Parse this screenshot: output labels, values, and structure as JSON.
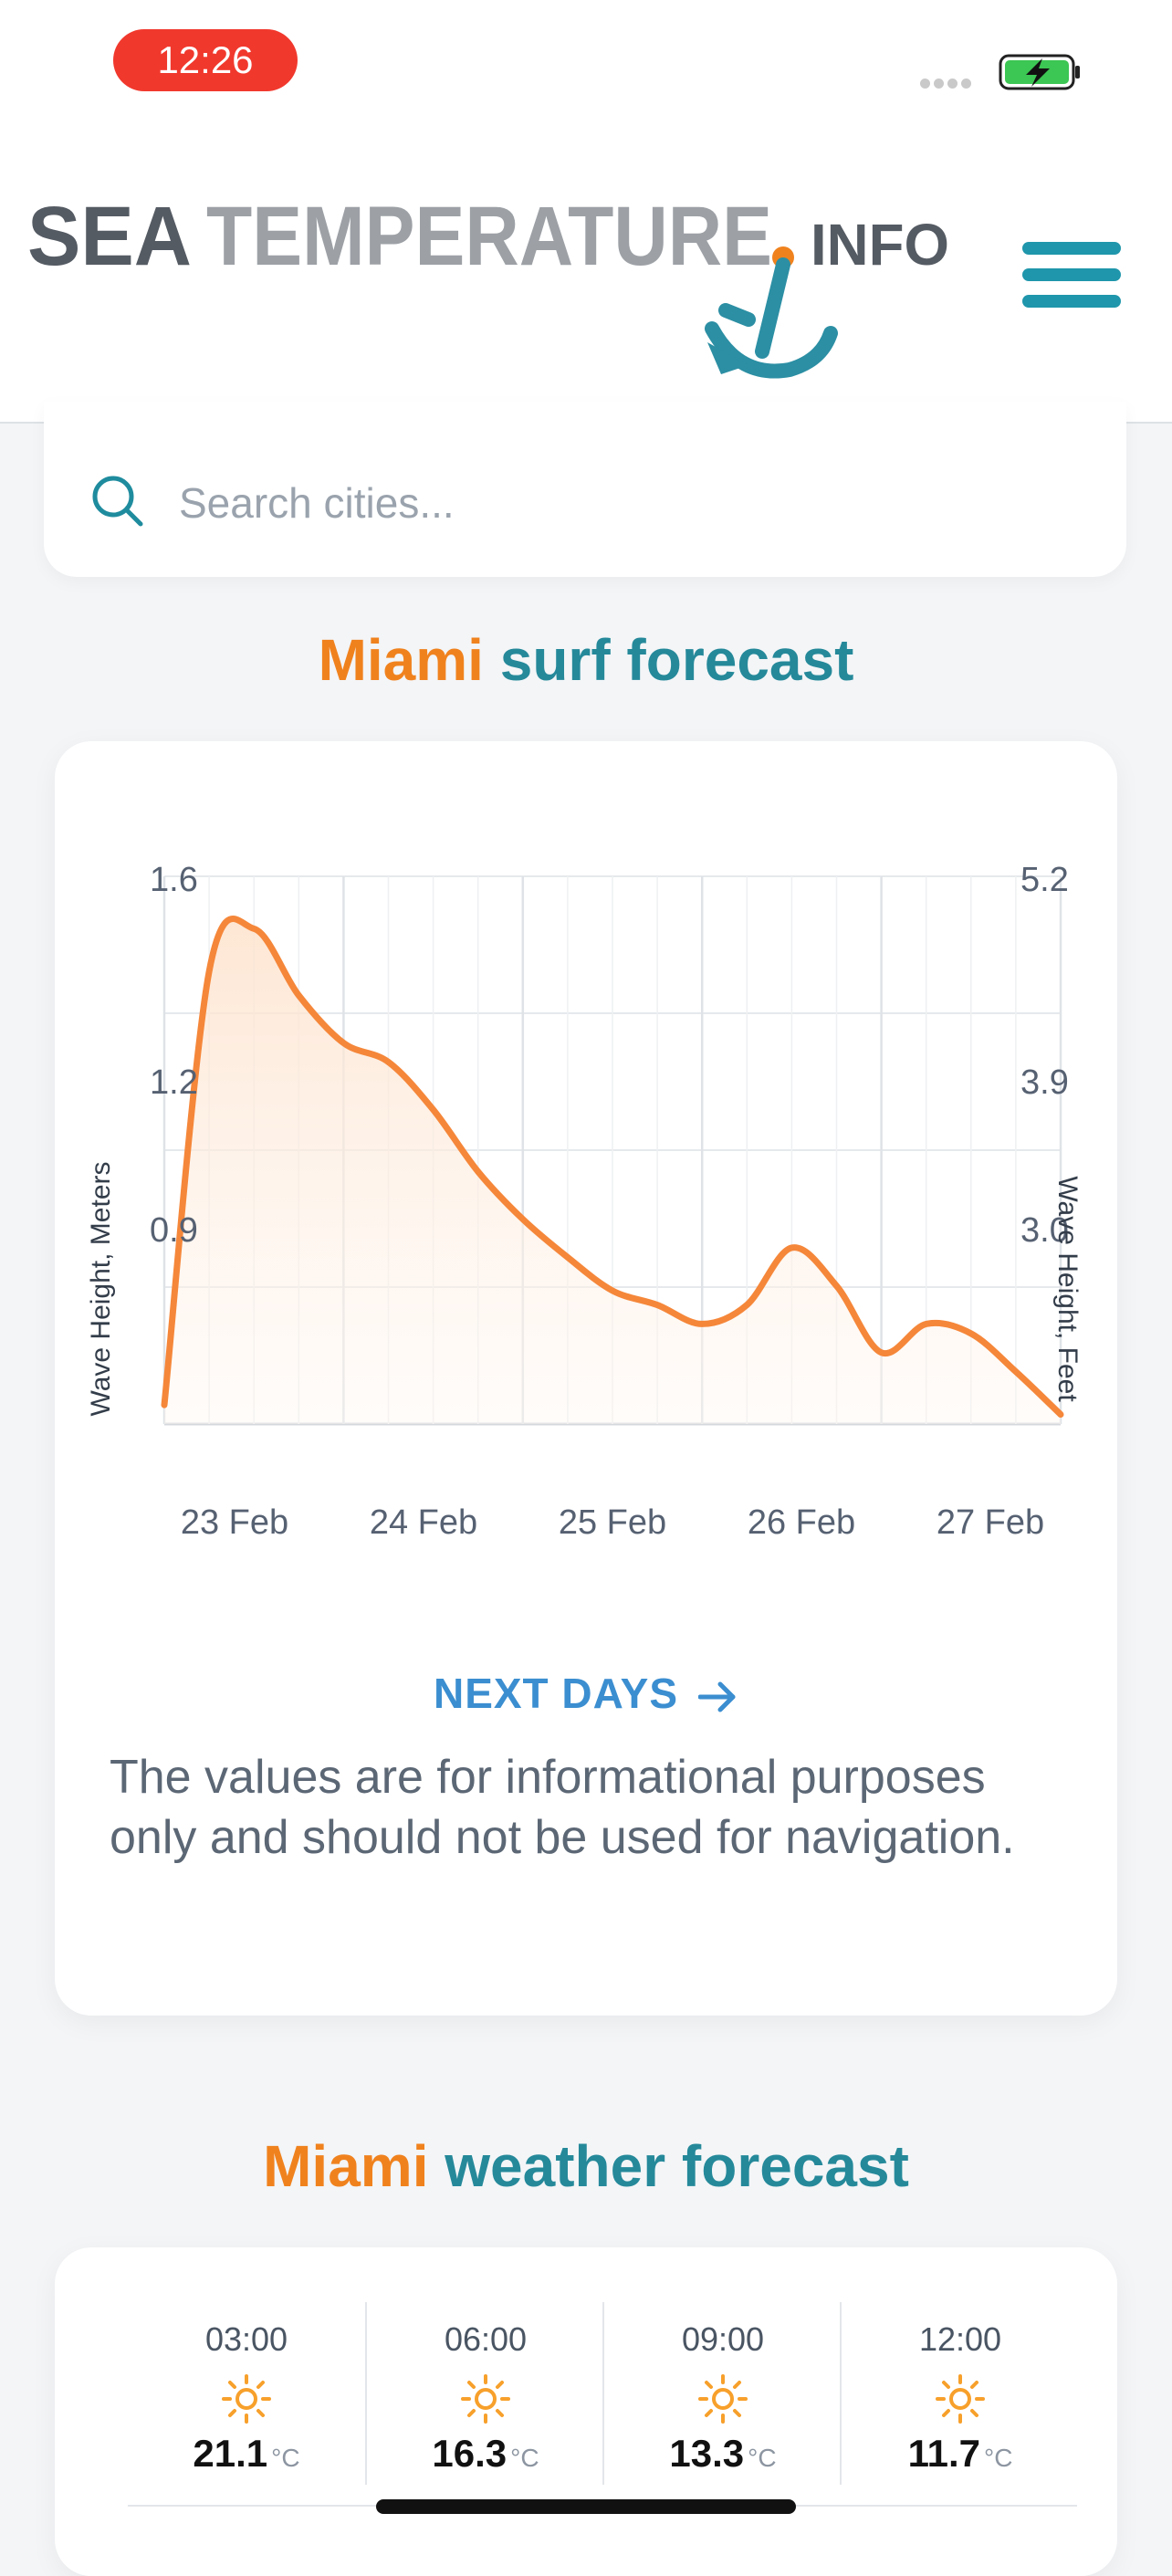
{
  "status_bar": {
    "time": "12:26"
  },
  "header": {
    "logo_text_1": "SEA",
    "logo_text_2": "TEMPERATURE",
    "logo_text_3": "INFO"
  },
  "search": {
    "placeholder": "Search cities..."
  },
  "surf_section": {
    "title_city": "Miami",
    "title_rest": " surf forecast",
    "next_days_label": "NEXT DAYS",
    "disclaimer": "The values are for informational purposes only and should not be used for navigation."
  },
  "chart_data": {
    "type": "area",
    "x": [
      0,
      0.25,
      0.5,
      0.75,
      1.0,
      1.25,
      1.5,
      1.75,
      2.0,
      2.25,
      2.5,
      2.75,
      3.0,
      3.25,
      3.5,
      3.75,
      4.0,
      4.25,
      4.5,
      4.75,
      5.0
    ],
    "series": [
      {
        "values": [
          0.49,
          1.4,
          1.49,
          1.35,
          1.25,
          1.21,
          1.11,
          0.98,
          0.88,
          0.8,
          0.73,
          0.7,
          0.66,
          0.7,
          0.82,
          0.74,
          0.6,
          0.66,
          0.64,
          0.56,
          0.47
        ]
      }
    ],
    "x_tick_labels": [
      "23 Feb",
      "24 Feb",
      "25 Feb",
      "26 Feb",
      "27 Feb"
    ],
    "y_left_ticks": [
      "1.6",
      "1.2",
      "0.9"
    ],
    "y_right_ticks": [
      "5.2",
      "3.9",
      "3.0"
    ],
    "ylabel_left": "Wave Height, Meters",
    "ylabel_right": "Wave Height, Feet",
    "ylim": [
      0.45,
      1.6
    ],
    "colors": {
      "line": "#f5873a",
      "fill": "#fde9d8",
      "grid": "#e6e9ec"
    },
    "grid": true
  },
  "weather_section": {
    "title_city": "Miami",
    "title_rest": " weather forecast",
    "hours": [
      {
        "time": "03:00",
        "icon": "sun-icon",
        "temp": "21.1",
        "unit": "°C"
      },
      {
        "time": "06:00",
        "icon": "sun-icon",
        "temp": "16.3",
        "unit": "°C"
      },
      {
        "time": "09:00",
        "icon": "sun-icon",
        "temp": "13.3",
        "unit": "°C"
      },
      {
        "time": "12:00",
        "icon": "sun-icon",
        "temp": "11.7",
        "unit": "°C"
      }
    ]
  },
  "colors": {
    "brand_orange": "#f0821e",
    "brand_teal": "#25899a",
    "link_blue": "#3b8ed0"
  }
}
